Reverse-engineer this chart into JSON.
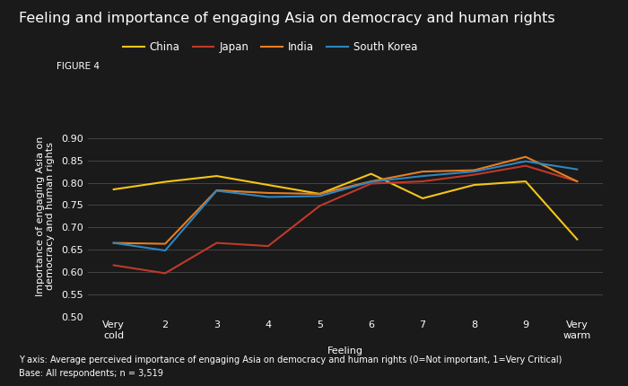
{
  "title": "Feeling and importance of engaging Asia on democracy and human rights",
  "figure_label": "FIGURE 4",
  "xlabel": "Feeling",
  "ylabel": "Importance of engaging Asia on\ndemocracy and human rights",
  "footnote1": "Y axis: Average perceived importance of engaging Asia on democracy and human rights (0=Not important, 1=Very Critical)",
  "footnote2": "Base: All respondents; n = 3,519",
  "x_labels": [
    "Very\ncold",
    "2",
    "3",
    "4",
    "5",
    "6",
    "7",
    "8",
    "9",
    "Very\nwarm"
  ],
  "x_positions": [
    1,
    2,
    3,
    4,
    5,
    6,
    7,
    8,
    9,
    10
  ],
  "ylim": [
    0.5,
    0.95
  ],
  "yticks": [
    0.5,
    0.55,
    0.6,
    0.65,
    0.7,
    0.75,
    0.8,
    0.85,
    0.9
  ],
  "series": {
    "China": {
      "color": "#F5C518",
      "values": [
        0.785,
        0.802,
        0.815,
        0.795,
        0.775,
        0.82,
        0.765,
        0.795,
        0.803,
        0.673
      ]
    },
    "Japan": {
      "color": "#C0392B",
      "values": [
        0.615,
        0.597,
        0.665,
        0.658,
        0.748,
        0.798,
        0.803,
        0.818,
        0.838,
        0.803
      ]
    },
    "India": {
      "color": "#E67E22",
      "values": [
        0.665,
        0.663,
        0.783,
        0.777,
        0.775,
        0.803,
        0.825,
        0.828,
        0.858,
        0.803
      ]
    },
    "South Korea": {
      "color": "#2E86C1",
      "values": [
        0.665,
        0.648,
        0.782,
        0.768,
        0.77,
        0.802,
        0.815,
        0.825,
        0.848,
        0.83
      ]
    }
  },
  "background_color": "#1a1a1a",
  "text_color": "#ffffff",
  "grid_color": "#4a4a4a",
  "title_fontsize": 11.5,
  "label_fontsize": 8,
  "tick_fontsize": 8,
  "legend_fontsize": 8.5,
  "footnote_fontsize": 7
}
